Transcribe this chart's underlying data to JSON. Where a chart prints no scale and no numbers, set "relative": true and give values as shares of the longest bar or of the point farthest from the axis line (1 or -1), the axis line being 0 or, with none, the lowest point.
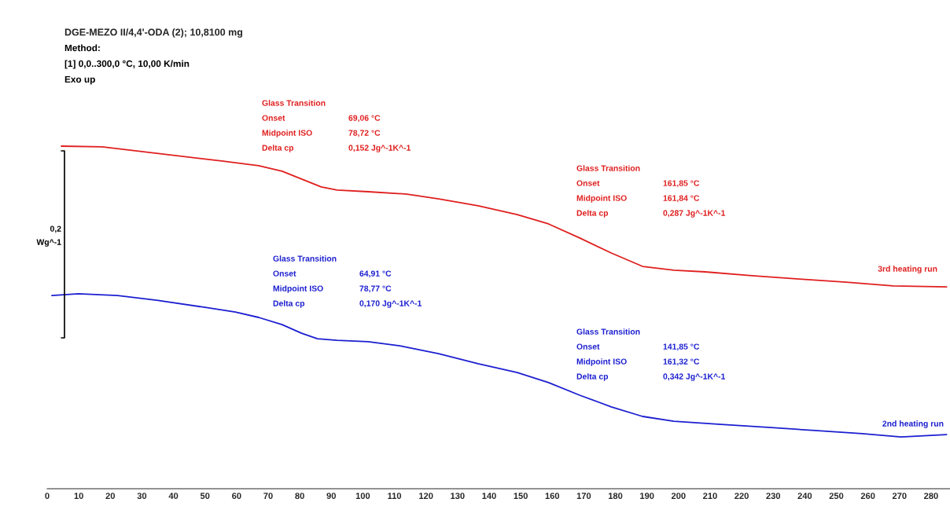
{
  "chart_data": {
    "type": "line",
    "relative": true,
    "legend": false,
    "grid": false,
    "tick_labels": "x",
    "title": "DGE-MEZO II/4,4'-ODA (2); 10,8100 mg",
    "xlim": [
      0,
      286
    ],
    "xticks": [
      0,
      10,
      20,
      30,
      40,
      50,
      60,
      70,
      80,
      90,
      100,
      110,
      120,
      130,
      140,
      150,
      160,
      170,
      180,
      190,
      200,
      210,
      220,
      230,
      240,
      250,
      260,
      270,
      280
    ],
    "annotations": [
      "Method:\n[1] 0,0..300,0 °C, 10,00 K/min\nExo up",
      "Glass Transition\nOnset\t69,06 °C\nMidpoint ISO\t78,72 °C\nDelta cp\t0,152 Jg^-1K^-1",
      "Glass Transition\nOnset\t161,85 °C\nMidpoint ISO\t161,84 °C\nDelta cp\t0,287 Jg^-1K^-1",
      "Glass Transition\nOnset\t64,91 °C\nMidpoint ISO\t78,77 °C\nDelta cp\t0,170 Jg^-1K^-1",
      "Glass Transition\nOnset\t141,85 °C\nMidpoint ISO\t161,32 °C\nDelta cp\t0,342 Jg^-1K^-1",
      "0,2\nWg^-1"
    ],
    "series": [
      {
        "name": "3rd heating run",
        "color": "#e01f1f",
        "x": [
          4.5,
          17.4,
          34.7,
          55.8,
          67,
          74.4,
          80.6,
          86.8,
          91.8,
          101.7,
          114,
          124,
          136.5,
          148.9,
          158.8,
          168.7,
          178.7,
          188.6,
          198.5,
          208.4,
          223.3,
          238.2,
          253.1,
          268,
          284.9
        ],
        "values": [
          1.0,
          0.998,
          0.979,
          0.956,
          0.943,
          0.927,
          0.904,
          0.881,
          0.872,
          0.867,
          0.86,
          0.846,
          0.826,
          0.8,
          0.773,
          0.732,
          0.688,
          0.649,
          0.638,
          0.633,
          0.622,
          0.612,
          0.603,
          0.592,
          0.589
        ]
      },
      {
        "name": "2nd heating run",
        "color": "#1c1fd0",
        "x": [
          1.5,
          9.9,
          22.3,
          34.7,
          49.6,
          59.6,
          67,
          74.4,
          80.6,
          85.6,
          91.8,
          101.7,
          111.7,
          124,
          136.5,
          148.9,
          158.8,
          168.7,
          178.7,
          188.6,
          198.5,
          213.4,
          228.3,
          243.2,
          258.1,
          270.5,
          284.9
        ],
        "values": [
          0.564,
          0.569,
          0.564,
          0.55,
          0.53,
          0.516,
          0.5,
          0.479,
          0.454,
          0.438,
          0.433,
          0.429,
          0.417,
          0.394,
          0.365,
          0.339,
          0.31,
          0.273,
          0.239,
          0.211,
          0.197,
          0.188,
          0.179,
          0.17,
          0.161,
          0.151,
          0.158
        ]
      }
    ]
  }
}
